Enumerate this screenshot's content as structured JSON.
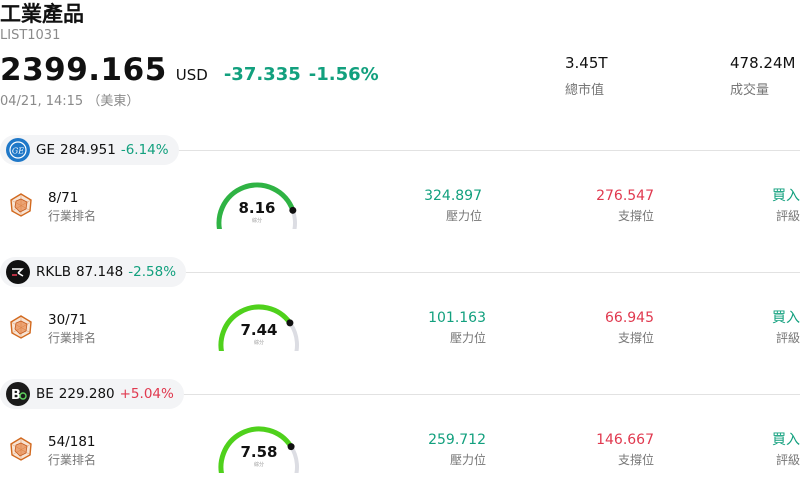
{
  "header": {
    "title": "工業產品",
    "code": "LIST1031",
    "price": "2399.165",
    "currency": "USD",
    "change": "-37.335",
    "change_pct": "-1.56%",
    "timestamp": "04/21, 14:15 （美東）"
  },
  "stats": [
    {
      "value": "3.45T",
      "label": "總市值"
    },
    {
      "value": "478.24M",
      "label": "成交量"
    }
  ],
  "labels": {
    "rank": "行業排名",
    "resistance": "壓力位",
    "support": "支撐位",
    "rating": "評級",
    "score": "綜分"
  },
  "stocks": [
    {
      "symbol": "GE",
      "price": "284.951",
      "change_pct": "-6.14%",
      "direction": "down",
      "logo_icon": "ge-logo-icon",
      "logo_bg": "#1f78c8",
      "rank": "8/71",
      "score": "8.16",
      "score_fraction": 0.816,
      "gauge_color": "#2fb344",
      "resistance": "324.897",
      "support": "276.547",
      "rating": "買入"
    },
    {
      "symbol": "RKLB",
      "price": "87.148",
      "change_pct": "-2.58%",
      "direction": "down",
      "logo_icon": "rklb-logo-icon",
      "logo_bg": "#111111",
      "rank": "30/71",
      "score": "7.44",
      "score_fraction": 0.744,
      "gauge_color": "#4fd11c",
      "resistance": "101.163",
      "support": "66.945",
      "rating": "買入"
    },
    {
      "symbol": "BE",
      "price": "229.280",
      "change_pct": "+5.04%",
      "direction": "up",
      "logo_icon": "be-logo-icon",
      "logo_bg": "#1b1b1b",
      "rank": "54/181",
      "score": "7.58",
      "score_fraction": 0.758,
      "gauge_color": "#4fd11c",
      "resistance": "259.712",
      "support": "146.667",
      "rating": "買入"
    }
  ],
  "colors": {
    "down": "#12a07e",
    "up": "#e0394f",
    "rating": "#12a07e",
    "gauge_track": "#dcdde3"
  }
}
